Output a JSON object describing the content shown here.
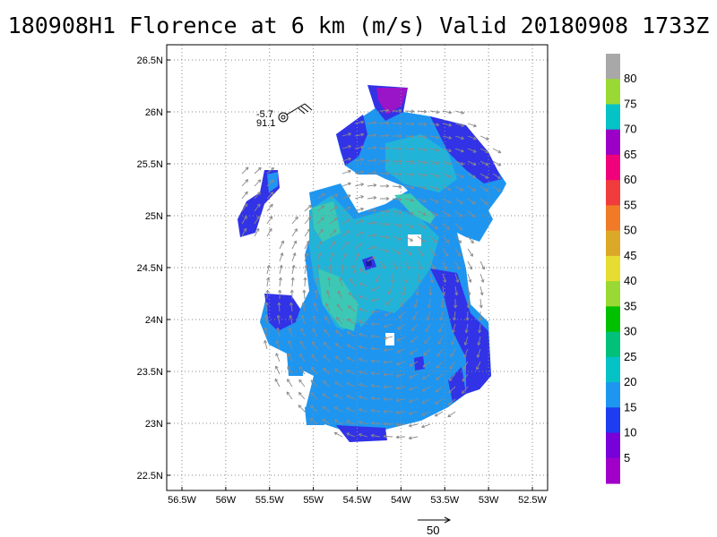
{
  "title": "180908H1 Florence at 6 km (m/s) Valid 20180908 1733Z",
  "map": {
    "lon_ticks": [
      "56.5W",
      "56W",
      "55.5W",
      "55W",
      "54.5W",
      "54W",
      "53.5W",
      "53W",
      "52.5W"
    ],
    "lat_ticks": [
      "26.5N",
      "26N",
      "25.5N",
      "25N",
      "24.5N",
      "24N",
      "23.5N",
      "23N",
      "22.5N"
    ],
    "xlim": [
      -56.5,
      -52.5
    ],
    "ylim": [
      22.5,
      26.5
    ]
  },
  "station": {
    "lon": -55.3,
    "lat": 26.03,
    "value_top": "-5.7",
    "value_bottom": "91.1"
  },
  "colorbar": {
    "labels": [
      "80",
      "75",
      "70",
      "65",
      "60",
      "55",
      "50",
      "45",
      "40",
      "35",
      "30",
      "25",
      "20",
      "15",
      "10",
      "5"
    ],
    "colors": [
      "#a8a8a8",
      "#9ad934",
      "#05c2c6",
      "#9a00c6",
      "#f0007a",
      "#f03c3c",
      "#f07a28",
      "#dca828",
      "#e6dc32",
      "#9ad934",
      "#00c000",
      "#00c07a",
      "#05c2c6",
      "#1e96f0",
      "#1e3cf0",
      "#7800d9",
      "#a000c8"
    ]
  },
  "vector_legend": {
    "label": "50"
  },
  "colors": {
    "c10": "#3232e6",
    "c15": "#1e96f0",
    "c20": "#22b4d8",
    "c25": "#3cc8b4",
    "c5": "#9a14c8"
  }
}
